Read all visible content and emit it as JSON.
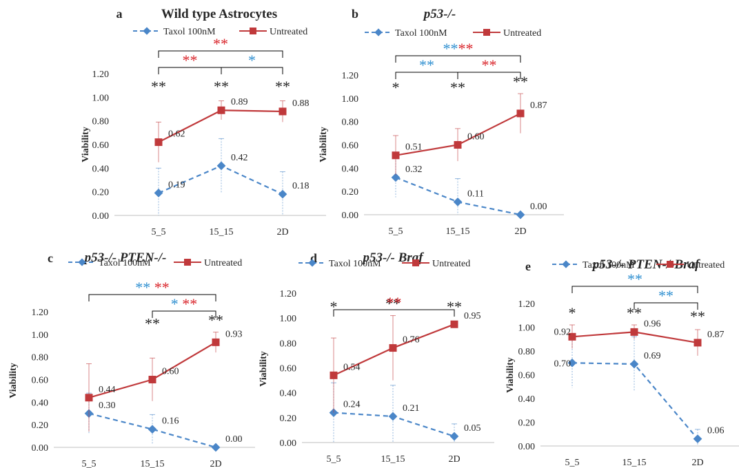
{
  "figure": {
    "x_categories": [
      "5_5",
      "15_15",
      "2D"
    ],
    "y_ticks": [
      "0.00",
      "0.20",
      "0.40",
      "0.60",
      "0.80",
      "1.00",
      "1.20"
    ],
    "y_label": "Viability",
    "legend": {
      "taxol": "Taxol 100nM",
      "untreated": "Untreated"
    },
    "colors": {
      "taxol": "#4a86c8",
      "untreated": "#c0393b",
      "axis": "#bfbfbf",
      "text": "#262626",
      "star_black": "#262626",
      "star_blue": "#2e8fd0",
      "star_red": "#d9242a"
    }
  },
  "chart_data": [
    {
      "letter": "a",
      "title": "Wild type Astrocytes",
      "title_italic": false,
      "type": "line",
      "ylabel": "Viability",
      "categories": [
        "5_5",
        "15_15",
        "2D"
      ],
      "ylim": [
        0,
        1.2
      ],
      "series": [
        {
          "name": "Taxol 100nM",
          "values": [
            0.19,
            0.42,
            0.18
          ],
          "labels": [
            "0.19",
            "0.42",
            "0.18"
          ],
          "err": [
            0.21,
            0.23,
            0.19
          ]
        },
        {
          "name": "Untreated",
          "values": [
            0.62,
            0.89,
            0.88
          ],
          "labels": [
            "0.62",
            "0.89",
            "0.88"
          ],
          "err": [
            0.17,
            0.08,
            0.09
          ]
        }
      ],
      "point_stars": [
        [
          "**",
          "black"
        ],
        [
          "**",
          "black"
        ],
        [
          "**",
          "black"
        ]
      ],
      "brackets": [
        {
          "from": 0,
          "to": 2,
          "level": 2,
          "stars": [
            [
              "**",
              "red"
            ]
          ]
        },
        {
          "from": 0,
          "to": 1,
          "level": 1,
          "stars": [
            [
              "**",
              "red"
            ]
          ]
        },
        {
          "from": 1,
          "to": 2,
          "level": 1,
          "stars": [
            [
              "*",
              "blue"
            ]
          ]
        }
      ]
    },
    {
      "letter": "b",
      "title": "p53-/-",
      "title_italic": true,
      "type": "line",
      "ylabel": "Viability",
      "categories": [
        "5_5",
        "15_15",
        "2D"
      ],
      "ylim": [
        0,
        1.2
      ],
      "series": [
        {
          "name": "Taxol 100nM",
          "values": [
            0.32,
            0.11,
            0.0
          ],
          "labels": [
            "0.32",
            "0.11",
            "0.00"
          ],
          "err": [
            0.17,
            0.2,
            0.0
          ]
        },
        {
          "name": "Untreated",
          "values": [
            0.51,
            0.6,
            0.87
          ],
          "labels": [
            "0.51",
            "0.60",
            "0.87"
          ],
          "err": [
            0.17,
            0.14,
            0.17
          ]
        }
      ],
      "point_stars": [
        [
          "*",
          "black"
        ],
        [
          "**",
          "black"
        ],
        [
          "**",
          "black"
        ]
      ],
      "brackets": [
        {
          "from": 0,
          "to": 2,
          "level": 2,
          "stars": [
            [
              "**",
              "blue"
            ],
            [
              "**",
              "red"
            ]
          ]
        },
        {
          "from": 0,
          "to": 1,
          "level": 1,
          "stars": [
            [
              "**",
              "blue"
            ]
          ]
        },
        {
          "from": 1,
          "to": 2,
          "level": 1,
          "stars": [
            [
              "**",
              "red"
            ]
          ]
        }
      ]
    },
    {
      "letter": "c",
      "title": "p53-/- PTEN-/-",
      "title_italic": true,
      "type": "line",
      "ylabel": "Viability",
      "categories": [
        "5_5",
        "15_15",
        "2D"
      ],
      "ylim": [
        0,
        1.2
      ],
      "series": [
        {
          "name": "Taxol 100nM",
          "values": [
            0.3,
            0.16,
            0.0
          ],
          "labels": [
            "0.30",
            "0.16",
            "0.00"
          ],
          "err": [
            0.18,
            0.13,
            0.0
          ]
        },
        {
          "name": "Untreated",
          "values": [
            0.44,
            0.6,
            0.93
          ],
          "labels": [
            "0.44",
            "0.60",
            "0.93"
          ],
          "err": [
            0.3,
            0.19,
            0.09
          ]
        }
      ],
      "point_stars": [
        null,
        [
          "**",
          "black"
        ],
        [
          "**",
          "black"
        ]
      ],
      "brackets": [
        {
          "from": 0,
          "to": 2,
          "level": 2,
          "stars": [
            [
              "**",
              "blue"
            ],
            [
              " ",
              "black"
            ],
            [
              "**",
              "red"
            ]
          ]
        },
        {
          "from": 1,
          "to": 2,
          "level": 1,
          "stars": [
            [
              "*",
              "blue"
            ],
            [
              " ",
              "black"
            ],
            [
              "**",
              "red"
            ]
          ]
        }
      ]
    },
    {
      "letter": "d",
      "title": "p53-/- Braf",
      "title_italic": true,
      "type": "line",
      "ylabel": "Viability",
      "categories": [
        "5_5",
        "15_15",
        "2D"
      ],
      "ylim": [
        0,
        1.2
      ],
      "series": [
        {
          "name": "Taxol 100nM",
          "values": [
            0.24,
            0.21,
            0.05
          ],
          "labels": [
            "0.24",
            "0.21",
            "0.05"
          ],
          "err": [
            0.24,
            0.25,
            0.1
          ]
        },
        {
          "name": "Untreated",
          "values": [
            0.54,
            0.76,
            0.95
          ],
          "labels": [
            "0.54",
            "0.76",
            "0.95"
          ],
          "err": [
            0.3,
            0.26,
            0.02
          ]
        }
      ],
      "point_stars": [
        [
          "*",
          "black"
        ],
        [
          "**",
          "black"
        ],
        [
          "**",
          "black"
        ]
      ],
      "brackets": [
        {
          "from": 0,
          "to": 2,
          "level": 1,
          "stars": [
            [
              "**",
              "red"
            ]
          ]
        }
      ]
    },
    {
      "letter": "e",
      "title": "p53-/- PTEN-/-Braf",
      "title_italic": true,
      "type": "line",
      "ylabel": "Viability",
      "categories": [
        "5_5",
        "15_15",
        "2D"
      ],
      "ylim": [
        0,
        1.2
      ],
      "series": [
        {
          "name": "Taxol 100nM",
          "values": [
            0.7,
            0.69,
            0.06
          ],
          "labels": [
            "0.70",
            "0.69",
            "0.06"
          ],
          "err": [
            0.21,
            0.23,
            0.08
          ]
        },
        {
          "name": "Untreated",
          "values": [
            0.92,
            0.96,
            0.87
          ],
          "labels": [
            "0.92",
            "0.96",
            "0.87"
          ],
          "err": [
            0.1,
            0.06,
            0.11
          ]
        }
      ],
      "point_stars": [
        [
          "*",
          "black"
        ],
        [
          "**",
          "black"
        ],
        [
          "**",
          "black"
        ]
      ],
      "brackets": [
        {
          "from": 0,
          "to": 2,
          "level": 2,
          "stars": [
            [
              "**",
              "blue"
            ]
          ]
        },
        {
          "from": 1,
          "to": 2,
          "level": 1,
          "stars": [
            [
              "**",
              "blue"
            ]
          ]
        }
      ]
    }
  ]
}
